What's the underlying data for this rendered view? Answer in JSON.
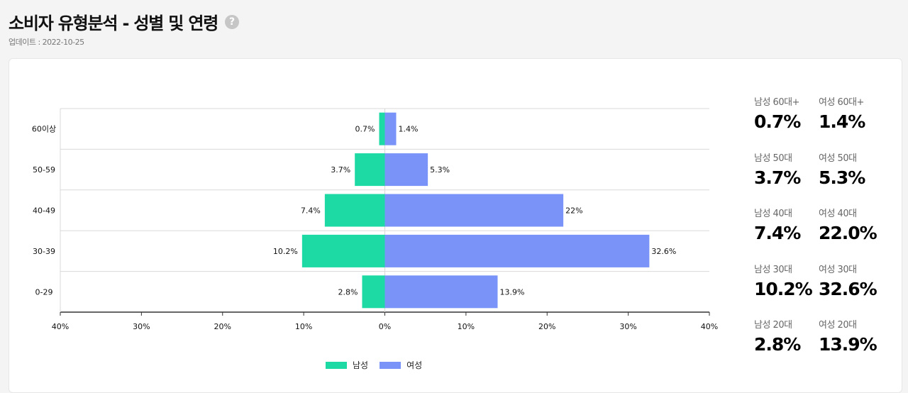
{
  "header": {
    "title": "소비자 유형분석 - 성별 및 연령",
    "help_icon": "question-circle-icon",
    "updated": "업데이트 : 2022-10-25"
  },
  "colors": {
    "male": "#1dd9a3",
    "female": "#7a93f8",
    "grid": "#d9d9d9",
    "axis": "#333333"
  },
  "chart_data": {
    "type": "bar",
    "orientation": "horizontal-diverging",
    "categories": [
      "60이상",
      "50-59",
      "40-49",
      "30-39",
      "0-29"
    ],
    "series": [
      {
        "name": "남성",
        "values": [
          0.7,
          3.7,
          7.4,
          10.2,
          2.8
        ],
        "labels": [
          "0.7%",
          "3.7%",
          "7.4%",
          "10.2%",
          "2.8%"
        ]
      },
      {
        "name": "여성",
        "values": [
          1.4,
          5.3,
          22,
          32.6,
          13.9
        ],
        "labels": [
          "1.4%",
          "5.3%",
          "22%",
          "32.6%",
          "13.9%"
        ]
      }
    ],
    "xlim": [
      -40,
      40
    ],
    "xticks": [
      "40%",
      "30%",
      "20%",
      "10%",
      "0%",
      "10%",
      "20%",
      "30%",
      "40%"
    ],
    "legend": "bottom"
  },
  "stats": [
    {
      "male_label": "남성 60대+",
      "male_value": "0.7%",
      "female_label": "여성 60대+",
      "female_value": "1.4%"
    },
    {
      "male_label": "남성 50대",
      "male_value": "3.7%",
      "female_label": "여성 50대",
      "female_value": "5.3%"
    },
    {
      "male_label": "남성 40대",
      "male_value": "7.4%",
      "female_label": "여성 40대",
      "female_value": "22.0%"
    },
    {
      "male_label": "남성 30대",
      "male_value": "10.2%",
      "female_label": "여성 30대",
      "female_value": "32.6%"
    },
    {
      "male_label": "남성 20대",
      "male_value": "2.8%",
      "female_label": "여성 20대",
      "female_value": "13.9%"
    }
  ]
}
